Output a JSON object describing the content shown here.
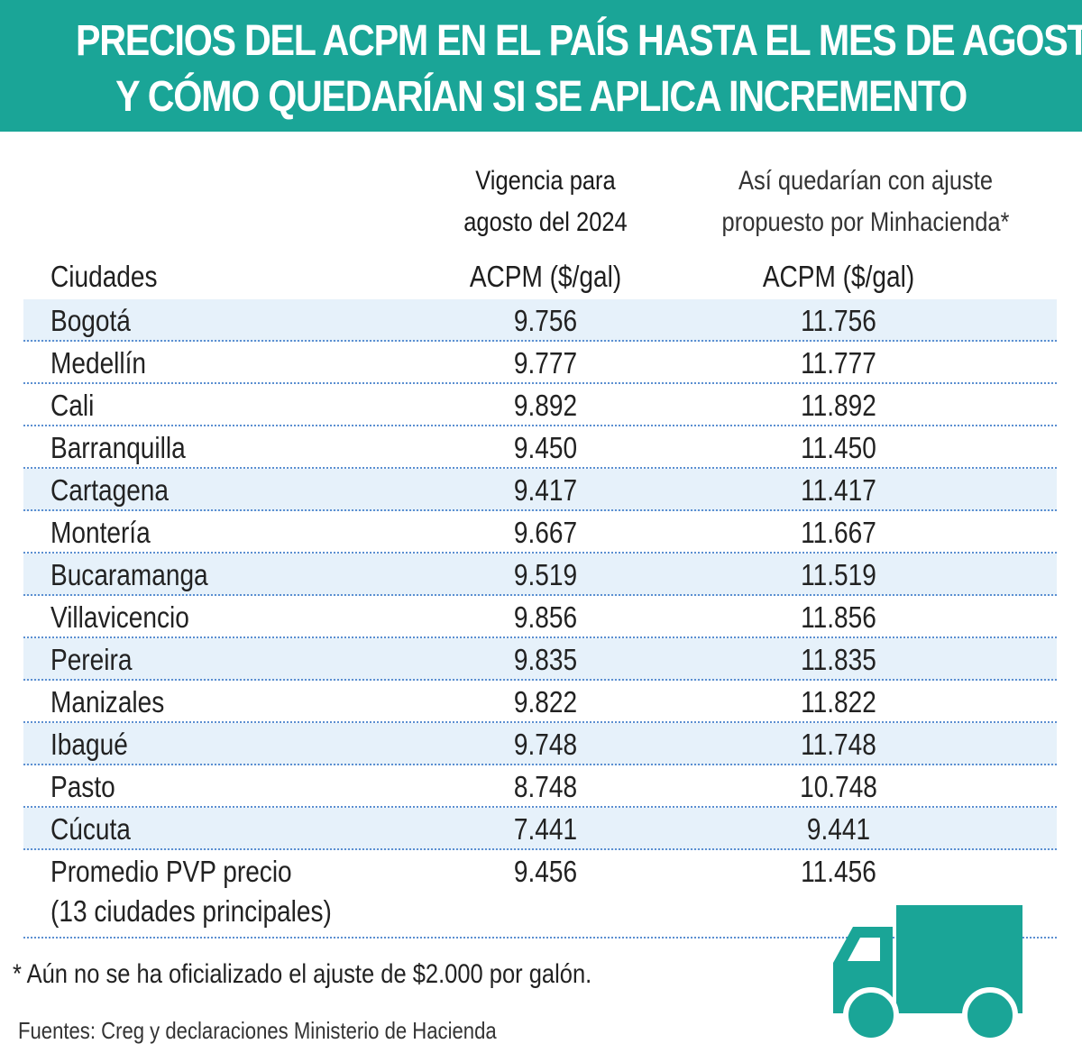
{
  "title": {
    "line1": "PRECIOS DEL ACPM EN EL PAÍS HASTA EL MES DE AGOSTO",
    "line2": "Y CÓMO QUEDARÍAN SI SE APLICA INCREMENTO"
  },
  "columns": {
    "city_header": "Ciudades",
    "current_header_line1": "Vigencia para",
    "current_header_line2": "agosto del 2024",
    "proposed_header_line1": "Así quedarían con ajuste",
    "proposed_header_line2": "propuesto por Minhacienda*",
    "unit_current": "ACPM ($/gal)",
    "unit_proposed": "ACPM ($/gal)"
  },
  "chart_data": {
    "type": "table",
    "title": "PRECIOS DEL ACPM EN EL PAÍS HASTA EL MES DE AGOSTO Y CÓMO QUEDARÍAN SI SE APLICA INCREMENTO",
    "columns": [
      "Ciudades",
      "Vigencia para agosto del 2024 ACPM ($/gal)",
      "Así quedarían con ajuste propuesto por Minhacienda* ACPM ($/gal)"
    ],
    "rows": [
      {
        "city": "Bogotá",
        "current": "9.756",
        "proposed": "11.756",
        "shaded": true
      },
      {
        "city": "Medellín",
        "current": "9.777",
        "proposed": "11.777",
        "shaded": false
      },
      {
        "city": "Cali",
        "current": "9.892",
        "proposed": "11.892",
        "shaded": false
      },
      {
        "city": "Barranquilla",
        "current": "9.450",
        "proposed": "11.450",
        "shaded": false
      },
      {
        "city": "Cartagena",
        "current": "9.417",
        "proposed": "11.417",
        "shaded": true
      },
      {
        "city": "Montería",
        "current": "9.667",
        "proposed": "11.667",
        "shaded": false
      },
      {
        "city": "Bucaramanga",
        "current": "9.519",
        "proposed": "11.519",
        "shaded": true
      },
      {
        "city": "Villavicencio",
        "current": "9.856",
        "proposed": "11.856",
        "shaded": false
      },
      {
        "city": "Pereira",
        "current": "9.835",
        "proposed": "11.835",
        "shaded": true
      },
      {
        "city": "Manizales",
        "current": "9.822",
        "proposed": "11.822",
        "shaded": false
      },
      {
        "city": "Ibagué",
        "current": "9.748",
        "proposed": "11.748",
        "shaded": true
      },
      {
        "city": "Pasto",
        "current": "8.748",
        "proposed": "10.748",
        "shaded": false
      },
      {
        "city": "Cúcuta",
        "current": "7.441",
        "proposed": "9.441",
        "shaded": true
      }
    ],
    "summary": {
      "city_line1": "Promedio PVP precio",
      "city_line2": "(13 ciudades principales)",
      "current": "9.456",
      "proposed": "11.456"
    }
  },
  "footnote": "* Aún no se ha oficializado el ajuste de $2.000 por galón.",
  "source": "Fuentes: Creg y declaraciones Ministerio de Hacienda",
  "colors": {
    "accent": "#1aa597",
    "row_shade": "#e6f1fa",
    "divider": "#5b8fd1"
  },
  "icon": "truck-icon"
}
